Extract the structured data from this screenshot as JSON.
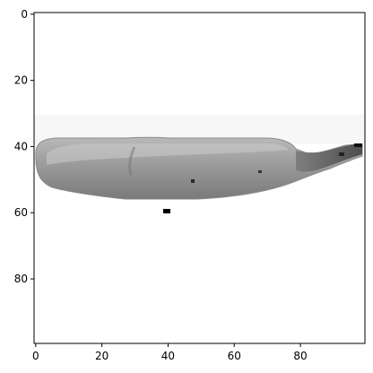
{
  "chart_data": {
    "type": "image",
    "title": "",
    "xlabel": "",
    "ylabel": "",
    "image_shape": [
      100,
      100
    ],
    "origin": "upper",
    "xlim": [
      -0.5,
      99.5
    ],
    "ylim": [
      99.5,
      -0.5
    ],
    "xticks": [
      0,
      20,
      40,
      60,
      80
    ],
    "yticks": [
      0,
      20,
      40,
      60,
      80
    ],
    "xtick_labels": [
      "0",
      "20",
      "40",
      "60",
      "80"
    ],
    "ytick_labels": [
      "0",
      "20",
      "40",
      "60",
      "80"
    ],
    "subject": "grayscale banana",
    "colormap": "gray"
  }
}
